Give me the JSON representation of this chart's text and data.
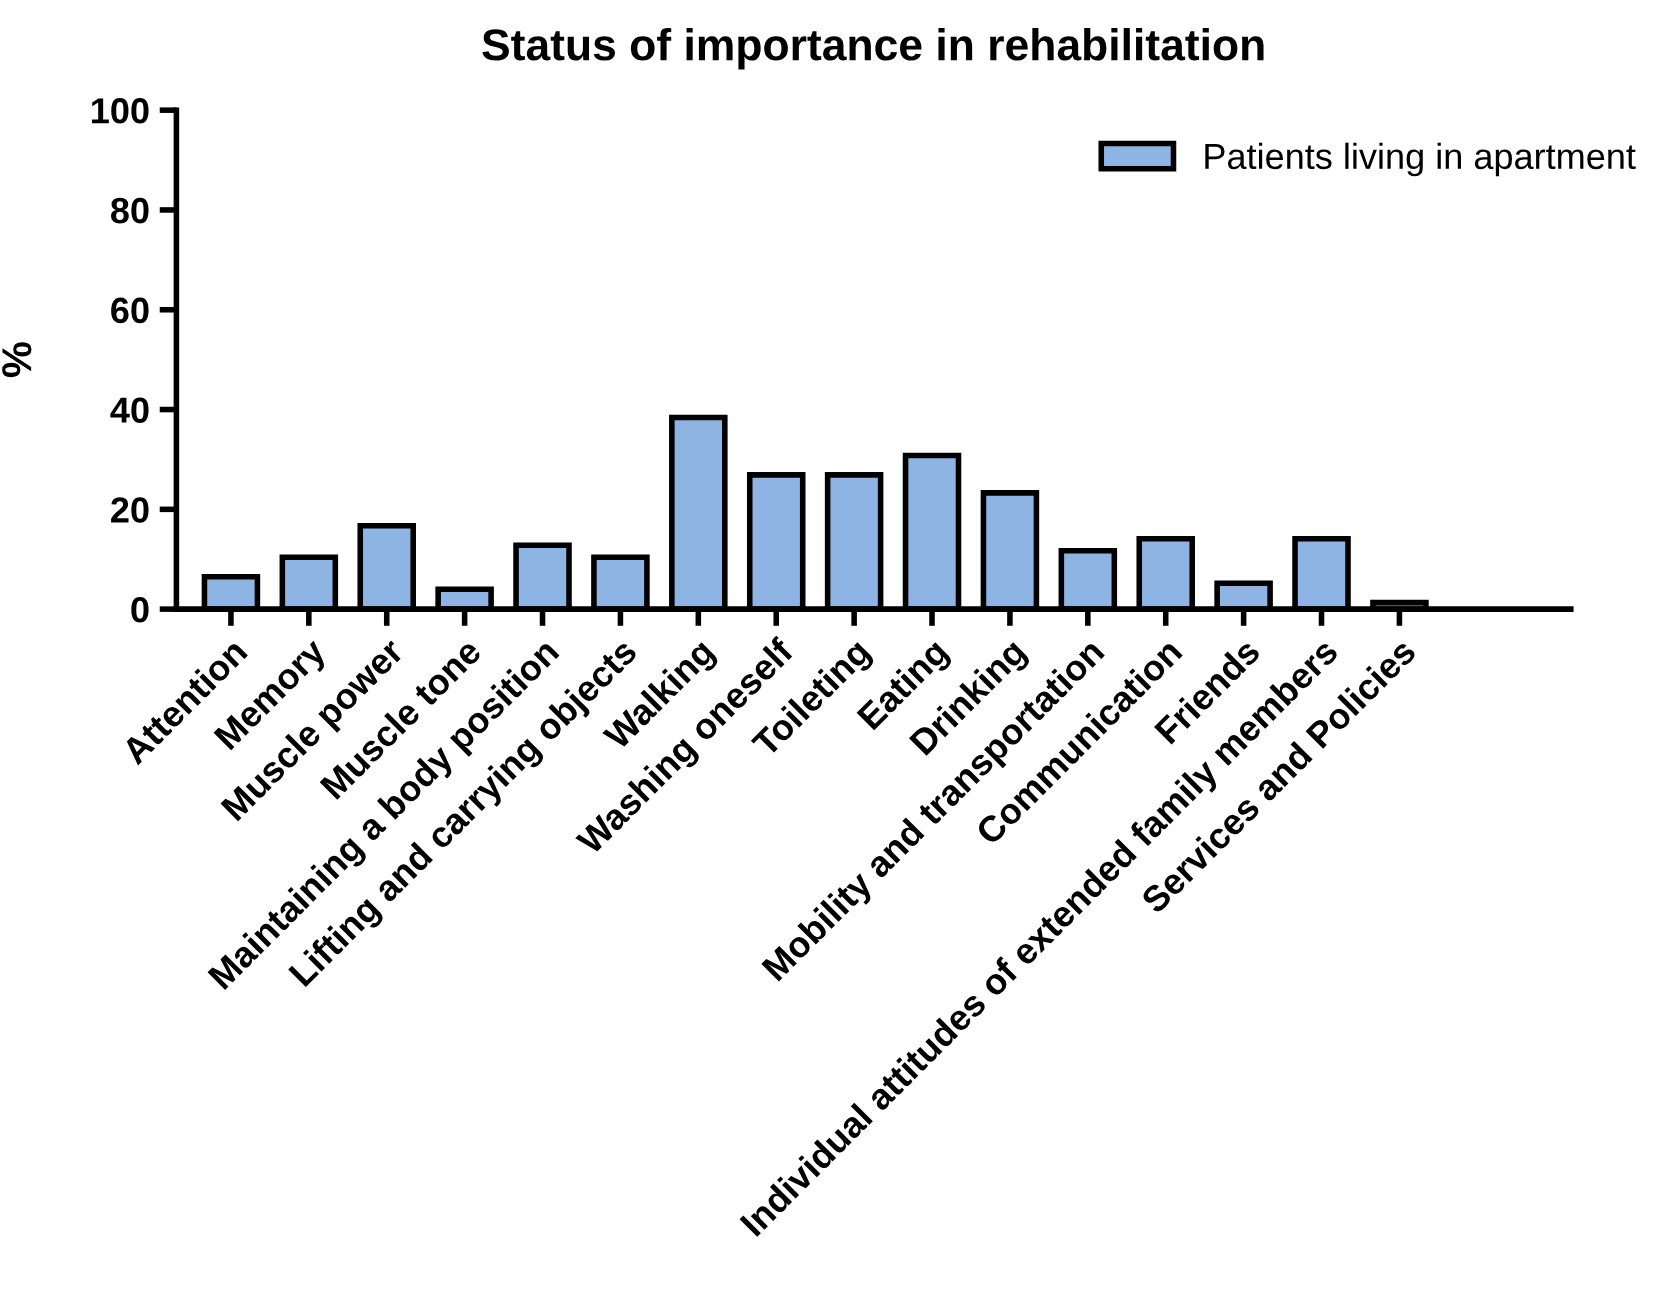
{
  "chart_data": {
    "type": "bar",
    "title": "Status of importance in rehabilitation",
    "ylabel": "%",
    "categories": [
      "Attention",
      "Memory",
      "Muscle power",
      "Muscle tone",
      "Maintaining a body position",
      "Lifting and carrying objects",
      "Walking",
      "Washing oneself",
      "Toileting",
      "Eating",
      "Drinking",
      "Mobility and transportation",
      "Communication",
      "Friends",
      "Individual attitudes of extended family members",
      "Services and Policies"
    ],
    "series": [
      {
        "name": "Patients living in apartment",
        "color": "#8db4e2",
        "values": [
          6.5,
          10.4,
          16.7,
          4.0,
          12.8,
          10.4,
          38.4,
          26.9,
          26.9,
          30.8,
          23.3,
          11.7,
          14.1,
          5.2,
          14.1,
          1.3
        ]
      }
    ],
    "ylim": [
      0,
      100
    ],
    "yticks": [
      0,
      20,
      40,
      60,
      80,
      100
    ],
    "grid": false,
    "legend": "top right"
  }
}
